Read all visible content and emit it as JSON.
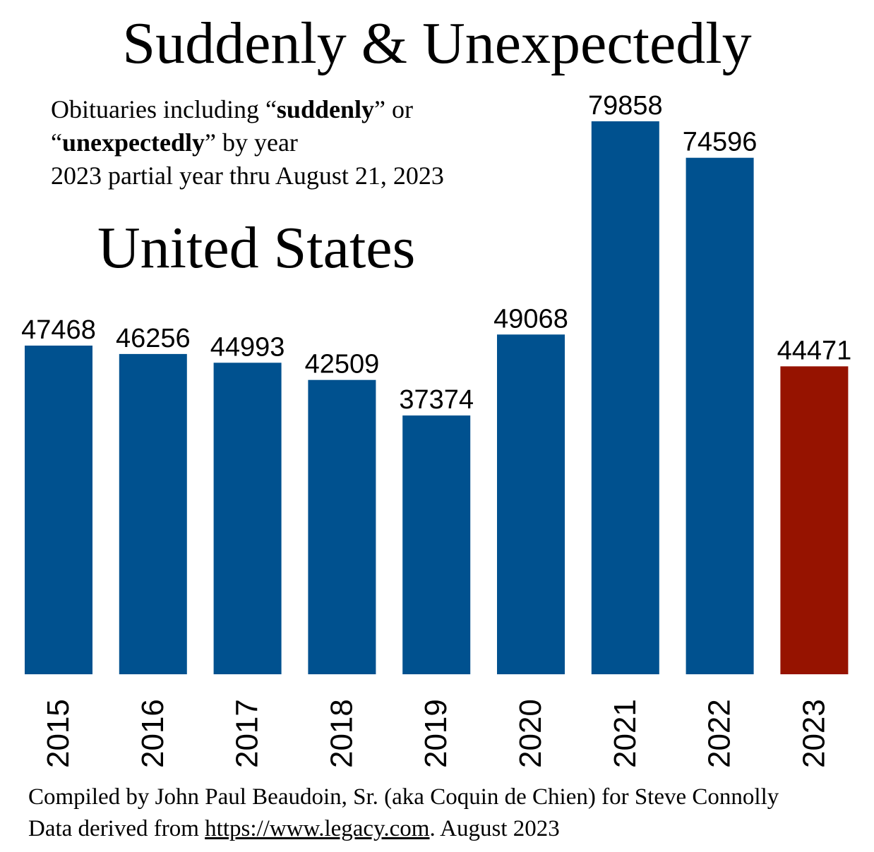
{
  "chart_data": {
    "type": "bar",
    "title": "Suddenly & Unexpectedly",
    "subtitle": {
      "line1_pre": "Obituaries including “",
      "line1_bold": "suddenly",
      "line1_post": "” or",
      "line2_pre": "“",
      "line2_bold": "unexpectedly",
      "line2_post": "” by year",
      "line3": "2023 partial year thru August 21, 2023"
    },
    "region": "United States",
    "categories": [
      "2015",
      "2016",
      "2017",
      "2018",
      "2019",
      "2020",
      "2021",
      "2022",
      "2023"
    ],
    "values": [
      47468,
      46256,
      44993,
      42509,
      37374,
      49068,
      79858,
      74596,
      44471
    ],
    "value_labels": [
      "47468",
      "46256",
      "44993",
      "42509",
      "37374",
      "49068",
      "79858",
      "74596",
      "44471"
    ],
    "colors": [
      "#00518F",
      "#00518F",
      "#00518F",
      "#00518F",
      "#00518F",
      "#00518F",
      "#00518F",
      "#00518F",
      "#961300"
    ],
    "ylim": [
      0,
      79858
    ],
    "xlabel": "",
    "ylabel": "",
    "grid": false,
    "legend": "none"
  },
  "footer": {
    "line1": "Compiled by John Paul Beaudoin, Sr. (aka Coquin de Chien) for Steve Connolly",
    "line2_pre": "Data derived from ",
    "line2_link": "https://www.legacy.com",
    "line2_post": ". August 2023"
  }
}
